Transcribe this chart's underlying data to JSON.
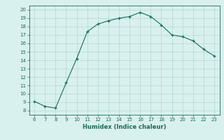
{
  "x": [
    6,
    7,
    8,
    9,
    10,
    11,
    12,
    13,
    14,
    15,
    16,
    17,
    18,
    19,
    20,
    21,
    22,
    23
  ],
  "y": [
    9.1,
    8.5,
    8.3,
    11.3,
    14.2,
    17.4,
    18.3,
    18.7,
    19.0,
    19.2,
    19.7,
    19.2,
    18.2,
    17.0,
    16.8,
    16.3,
    15.3,
    14.5
  ],
  "xlim": [
    5.5,
    23.5
  ],
  "ylim": [
    7.5,
    20.5
  ],
  "xticks": [
    6,
    7,
    8,
    9,
    10,
    11,
    12,
    13,
    14,
    15,
    16,
    17,
    18,
    19,
    20,
    21,
    22,
    23
  ],
  "yticks": [
    8,
    9,
    10,
    11,
    12,
    13,
    14,
    15,
    16,
    17,
    18,
    19,
    20
  ],
  "xlabel": "Humidex (Indice chaleur)",
  "line_color": "#1a6b5a",
  "marker": "+",
  "bg_color": "#d8f0ee",
  "grid_color": "#b0d8d4"
}
